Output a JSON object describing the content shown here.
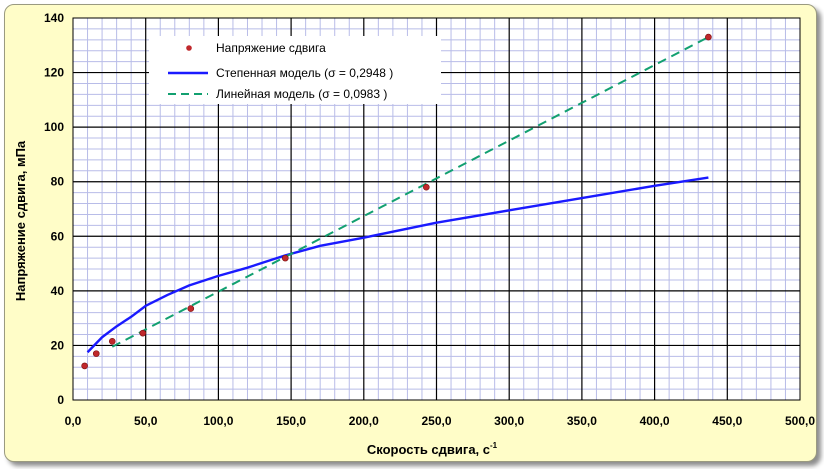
{
  "chart_data": {
    "type": "scatter",
    "title": "",
    "xlabel": "Скорость сдвига, с",
    "xlabel_superscript": "-1",
    "ylabel": "Напряжение сдвига, мПа",
    "xlim": [
      0,
      500
    ],
    "ylim": [
      0,
      140
    ],
    "x_ticks": [
      "0,0",
      "50,0",
      "100,0",
      "150,0",
      "200,0",
      "250,0",
      "300,0",
      "350,0",
      "400,0",
      "450,0",
      "500,0"
    ],
    "y_ticks": [
      "0",
      "20",
      "40",
      "60",
      "80",
      "100",
      "120",
      "140"
    ],
    "grid": true,
    "legend_position": "top-center",
    "series": [
      {
        "name": "Напряжение сдвига",
        "kind": "points",
        "color": "#c0282c",
        "x": [
          8,
          16,
          27,
          48,
          81,
          146,
          243,
          437
        ],
        "y": [
          12.5,
          17,
          21.5,
          24.5,
          33.5,
          52,
          78,
          133
        ]
      },
      {
        "name": "Степенная модель (σ = 0,2948 )",
        "kind": "line",
        "style": "solid",
        "color": "#1a1aff",
        "x": [
          10,
          20,
          30,
          40,
          50,
          65,
          80,
          100,
          120,
          146,
          170,
          200,
          250,
          300,
          350,
          400,
          437
        ],
        "y": [
          17.5,
          23,
          27,
          30.5,
          34.5,
          38.5,
          42,
          45.5,
          48.5,
          53,
          56.5,
          59.5,
          65,
          69.5,
          74,
          78.5,
          81.5
        ]
      },
      {
        "name": "Линейная модель (σ = 0,0983 )",
        "kind": "line",
        "style": "dashed",
        "color": "#12a070",
        "x": [
          27,
          437
        ],
        "y": [
          19.5,
          133
        ]
      }
    ]
  },
  "colors": {
    "frame_bg": "#fffdc8",
    "plot_bg": "#ffffff",
    "minor_grid": "#b8bce8",
    "major_grid": "#000000"
  }
}
